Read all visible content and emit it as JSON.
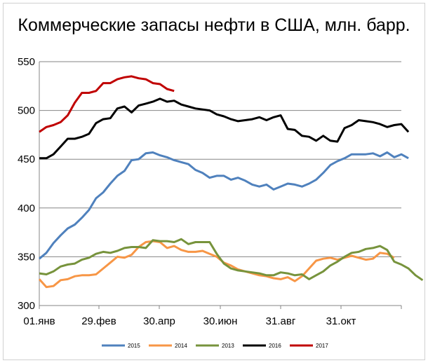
{
  "chart_data": {
    "type": "line",
    "title": "Коммерческие запасы нефти в США, млн. барр.",
    "xlabel": "",
    "ylabel": "",
    "ylim": [
      300,
      550
    ],
    "yticks": [
      300,
      350,
      400,
      450,
      500,
      550
    ],
    "xlim": [
      0,
      51
    ],
    "xticks": [
      {
        "label": "01.янв",
        "at": 0
      },
      {
        "label": "29.фев",
        "at": 8.4
      },
      {
        "label": "30.апр",
        "at": 16.9
      },
      {
        "label": "30.июн",
        "at": 25.5
      },
      {
        "label": "31.авг",
        "at": 34
      },
      {
        "label": "31.окт",
        "at": 42.5
      }
    ],
    "grid": true,
    "legend": "bottom",
    "series": [
      {
        "name": "2015",
        "color": "#4f81bd",
        "values": [
          348,
          354,
          364,
          372,
          379,
          383,
          390,
          398,
          410,
          416,
          425,
          433,
          438,
          449,
          450,
          456,
          457,
          454,
          452,
          449,
          447,
          445,
          439,
          436,
          431,
          433,
          433,
          429,
          431,
          428,
          424,
          422,
          424,
          419,
          422,
          425,
          424,
          422,
          425,
          429,
          436,
          444,
          448,
          451,
          455,
          455,
          455,
          456,
          453,
          457,
          452,
          455,
          451
        ]
      },
      {
        "name": "2014",
        "color": "#f79646",
        "values": [
          327,
          319,
          320,
          326,
          327,
          330,
          331,
          331,
          332,
          338,
          344,
          350,
          349,
          352,
          360,
          365,
          366,
          365,
          359,
          361,
          357,
          355,
          355,
          356,
          353,
          350,
          344,
          341,
          337,
          335,
          333,
          331,
          330,
          328,
          327,
          329,
          325,
          330,
          338,
          346,
          348,
          349,
          347,
          349,
          351,
          349,
          347,
          348,
          354,
          353,
          349
        ]
      },
      {
        "name": "2013",
        "color": "#77933c",
        "values": [
          333,
          332,
          335,
          340,
          342,
          343,
          347,
          349,
          353,
          355,
          354,
          356,
          359,
          360,
          360,
          359,
          367,
          366,
          366,
          365,
          368,
          363,
          365,
          365,
          365,
          353,
          343,
          338,
          336,
          335,
          334,
          333,
          331,
          331,
          334,
          333,
          331,
          332,
          327,
          331,
          335,
          341,
          345,
          350,
          354,
          355,
          358,
          359,
          361,
          357,
          345,
          342,
          338,
          331,
          326
        ]
      },
      {
        "name": "2016",
        "color": "#000000",
        "values": [
          451,
          451,
          455,
          463,
          471,
          471,
          473,
          476,
          487,
          491,
          492,
          502,
          504,
          498,
          505,
          507,
          509,
          512,
          509,
          510,
          506,
          504,
          502,
          501,
          500,
          496,
          494,
          491,
          489,
          490,
          491,
          493,
          490,
          493,
          495,
          481,
          480,
          474,
          473,
          469,
          474,
          469,
          468,
          482,
          485,
          490,
          489,
          488,
          486,
          483,
          485,
          486,
          478
        ]
      },
      {
        "name": "2017",
        "color": "#c00000",
        "values": [
          478,
          483,
          485,
          488,
          495,
          508,
          518,
          518,
          520,
          528,
          528,
          532,
          534,
          535,
          533,
          532,
          528,
          527,
          522,
          520
        ]
      }
    ]
  }
}
